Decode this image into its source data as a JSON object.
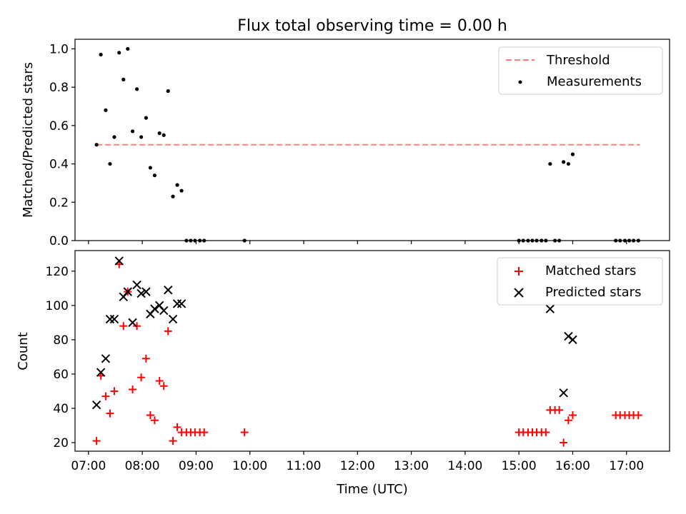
{
  "chart_data": [
    {
      "type": "scatter",
      "title": "Flux total observing time = 0.00 h",
      "ylabel": "Matched/Predicted stars",
      "xlabel": "",
      "xlim": [
        6.75,
        17.8
      ],
      "ylim": [
        0.0,
        1.05
      ],
      "yticks": [
        0.0,
        0.2,
        0.4,
        0.6,
        0.8,
        1.0
      ],
      "yticklabels": [
        "0.0",
        "0.2",
        "0.4",
        "0.6",
        "0.8",
        "1.0"
      ],
      "legend_position": "top-right",
      "threshold": {
        "name": "Threshold",
        "value": 0.5,
        "x_range": [
          7.15,
          17.25
        ],
        "color": "#ff7f7f"
      },
      "series": [
        {
          "name": "Measurements",
          "marker": "dot",
          "color": "#000000",
          "x": [
            7.15,
            7.23,
            7.32,
            7.4,
            7.48,
            7.57,
            7.65,
            7.73,
            7.82,
            7.9,
            7.98,
            8.07,
            8.15,
            8.23,
            8.32,
            8.4,
            8.48,
            8.57,
            8.65,
            8.73,
            8.82,
            8.9,
            8.98,
            9.07,
            9.15,
            9.9,
            15.0,
            15.08,
            15.17,
            15.25,
            15.33,
            15.42,
            15.5,
            15.58,
            15.67,
            15.75,
            15.83,
            15.92,
            16.0,
            16.8,
            16.88,
            16.97,
            17.05,
            17.13,
            17.22
          ],
          "y": [
            0.5,
            0.97,
            0.68,
            0.4,
            0.54,
            0.98,
            0.84,
            1.0,
            0.57,
            0.79,
            0.54,
            0.64,
            0.38,
            0.34,
            0.56,
            0.55,
            0.78,
            0.23,
            0.29,
            0.26,
            0.0,
            0.0,
            0.0,
            0.0,
            0.0,
            0.0,
            0.0,
            0.0,
            0.0,
            0.0,
            0.0,
            0.0,
            0.0,
            0.4,
            0.0,
            0.0,
            0.41,
            0.4,
            0.45,
            0.0,
            0.0,
            0.0,
            0.0,
            0.0,
            0.0
          ]
        }
      ]
    },
    {
      "type": "scatter",
      "title": "",
      "ylabel": "Count",
      "xlabel": "Time (UTC)",
      "xlim": [
        6.75,
        17.8
      ],
      "ylim": [
        15,
        132
      ],
      "yticks": [
        20,
        40,
        60,
        80,
        100,
        120
      ],
      "yticklabels": [
        "20",
        "40",
        "60",
        "80",
        "100",
        "120"
      ],
      "xticks": [
        7,
        8,
        9,
        10,
        11,
        12,
        13,
        14,
        15,
        16,
        17
      ],
      "xticklabels": [
        "07:00",
        "08:00",
        "09:00",
        "10:00",
        "11:00",
        "12:00",
        "13:00",
        "14:00",
        "15:00",
        "16:00",
        "17:00"
      ],
      "legend_position": "top-right",
      "series": [
        {
          "name": "Matched stars",
          "marker": "plus",
          "color": "#ff0000",
          "x": [
            7.15,
            7.23,
            7.32,
            7.4,
            7.48,
            7.57,
            7.65,
            7.73,
            7.82,
            7.9,
            7.98,
            8.07,
            8.15,
            8.23,
            8.32,
            8.4,
            8.48,
            8.57,
            8.65,
            8.73,
            8.82,
            8.9,
            8.98,
            9.07,
            9.15,
            9.9,
            15.0,
            15.08,
            15.17,
            15.25,
            15.33,
            15.42,
            15.5,
            15.58,
            15.67,
            15.75,
            15.83,
            15.92,
            16.0,
            16.8,
            16.88,
            16.97,
            17.05,
            17.13,
            17.22
          ],
          "y": [
            21,
            59,
            47,
            37,
            50,
            124,
            88,
            108,
            51,
            88,
            58,
            69,
            36,
            33,
            56,
            53,
            85,
            21,
            29,
            26,
            26,
            26,
            26,
            26,
            26,
            26,
            26,
            26,
            26,
            26,
            26,
            26,
            26,
            39,
            39,
            39,
            20,
            33,
            36,
            36,
            36,
            36,
            36,
            36,
            36
          ]
        },
        {
          "name": "Predicted stars",
          "marker": "x",
          "color": "#000000",
          "x": [
            7.15,
            7.23,
            7.32,
            7.4,
            7.48,
            7.57,
            7.65,
            7.73,
            7.82,
            7.9,
            7.98,
            8.07,
            8.15,
            8.23,
            8.32,
            8.4,
            8.48,
            8.57,
            8.65,
            8.73,
            15.58,
            15.83,
            15.92,
            16.0
          ],
          "y": [
            42,
            61,
            69,
            92,
            92,
            126,
            105,
            108,
            90,
            112,
            107,
            108,
            95,
            98,
            100,
            97,
            109,
            92,
            101,
            101,
            98,
            49,
            82,
            80
          ]
        }
      ]
    }
  ]
}
